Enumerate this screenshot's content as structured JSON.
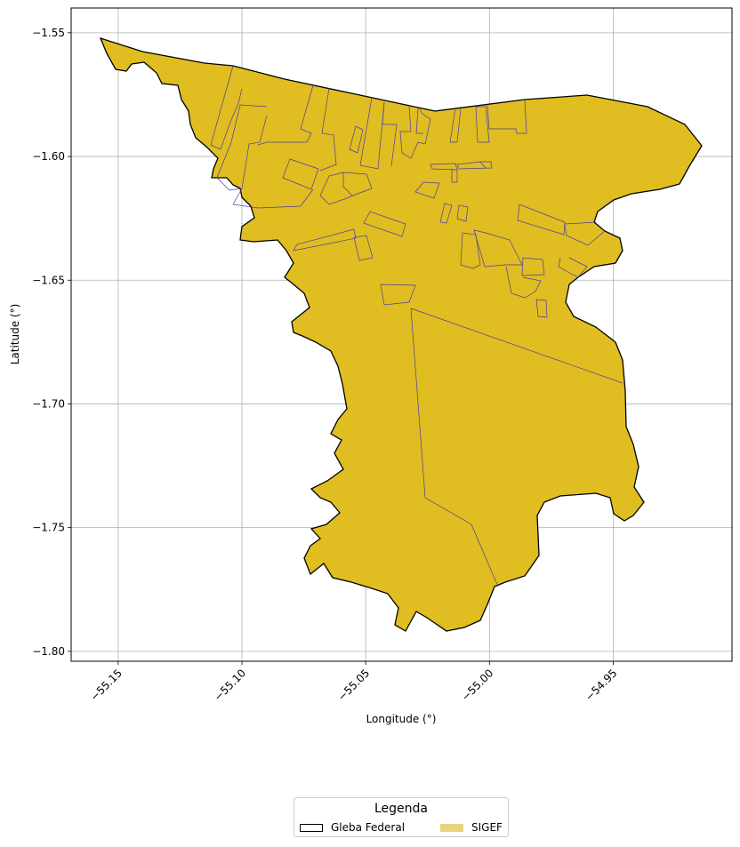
{
  "map": {
    "type": "geographic",
    "xlabel": "Longitude (°)",
    "ylabel": "Latitude (°)",
    "xlim": [
      -55.169,
      -54.902
    ],
    "ylim": [
      -1.804,
      -1.54
    ],
    "grid": true,
    "x_ticks": [
      -55.15,
      -55.1,
      -55.05,
      -55.0,
      -54.95
    ],
    "x_tick_labels": [
      "−55.15",
      "−55.10",
      "−55.05",
      "−55.00",
      "−54.95"
    ],
    "y_ticks": [
      -1.55,
      -1.6,
      -1.65,
      -1.7,
      -1.75,
      -1.8
    ],
    "y_tick_labels": [
      "−1.55",
      "−1.60",
      "−1.65",
      "−1.70",
      "−1.75",
      "−1.80"
    ]
  },
  "layers": [
    {
      "name": "Gleba Federal",
      "fill": "#ffffff",
      "edge": "#000000"
    },
    {
      "name": "SIGEF",
      "fill": "#e0bd20",
      "edge": "#4b3fa0",
      "legend_fill": "#e8d47a"
    }
  ],
  "legend": {
    "title": "Legenda",
    "placement": "bottom-center",
    "items": [
      "Gleba Federal",
      "SIGEF"
    ]
  },
  "colors": {
    "gleba_outline": "#000000",
    "sigef_fill": "#e0bd20",
    "parcel_line": "#4b3fa0",
    "grid": "#b0b0b0"
  }
}
